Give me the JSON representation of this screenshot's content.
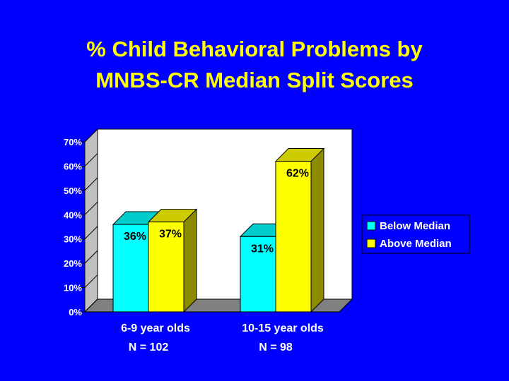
{
  "slide": {
    "title_line1": "% Child Behavioral Problems by",
    "title_line2": "MNBS-CR Median Split Scores"
  },
  "colors": {
    "background": "#0000FF",
    "title": "#FFFF00",
    "series_below": "#00FFFF",
    "series_above": "#FFFF00",
    "plot_back": "#FFFFFF",
    "floor": "#808080",
    "text": "#FFFFFF"
  },
  "chart_data": {
    "type": "bar",
    "categories": [
      "6-9 year olds",
      "10-15 year olds"
    ],
    "sample_sizes": [
      "N = 102",
      "N = 98"
    ],
    "series": [
      {
        "name": "Below Median",
        "values": [
          36,
          31
        ],
        "labels": [
          "36%",
          "31%"
        ]
      },
      {
        "name": "Above Median",
        "values": [
          37,
          62
        ],
        "labels": [
          "37%",
          "62%"
        ]
      }
    ],
    "ylim": [
      0,
      70
    ],
    "yticks": [
      "0%",
      "10%",
      "20%",
      "30%",
      "40%",
      "50%",
      "60%",
      "70%"
    ],
    "legend_position": "right",
    "grid": false,
    "three_d": true
  }
}
